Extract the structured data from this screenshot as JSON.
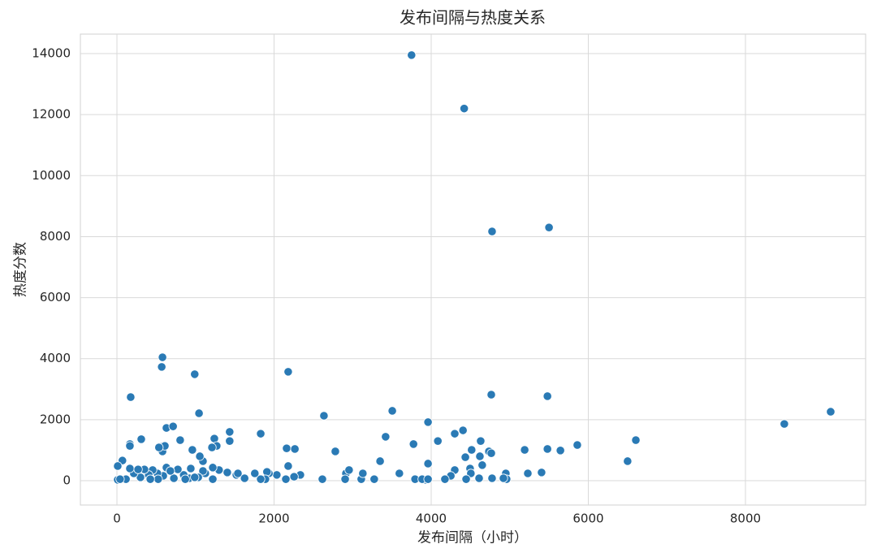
{
  "chart_data": {
    "type": "scatter",
    "title": "发布间隔与热度关系",
    "x_label": "发布间隔（小时）",
    "y_label": "热度分数",
    "color": "#2a7ab5",
    "grid": true,
    "xlim": [
      -465,
      9530
    ],
    "ylim": [
      -798,
      14639
    ],
    "xticks": [
      0,
      2000,
      4000,
      6000,
      8000
    ],
    "yticks": [
      0,
      2000,
      4000,
      6000,
      8000,
      10000,
      12000,
      14000
    ],
    "x": [
      3750,
      4420,
      4775,
      5500,
      580,
      570,
      990,
      2180,
      175,
      4765,
      5480,
      1045,
      2635,
      3505,
      9085,
      8495,
      3960,
      1830,
      1435,
      1435,
      310,
      630,
      715,
      805,
      1240,
      1270,
      1210,
      165,
      165,
      3420,
      3775,
      4085,
      4300,
      4405,
      4630,
      4735,
      4765,
      4515,
      4620,
      4650,
      4300,
      4250,
      4435,
      4495,
      4505,
      580,
      580,
      610,
      960,
      535,
      1095,
      1055,
      2160,
      2265,
      2180,
      2780,
      3350,
      3595,
      3960,
      5190,
      5480,
      5645,
      5860,
      6605,
      6500,
      5230,
      5405,
      4950,
      4960,
      4920,
      4775,
      4610,
      4445,
      4175,
      3930,
      3795,
      3885,
      3960,
      3275,
      3110,
      3130,
      2915,
      2955,
      2905,
      2615,
      2335,
      2255,
      2150,
      2035,
      1935,
      1910,
      1890,
      1830,
      1755,
      1625,
      1520,
      1405,
      1300,
      1220,
      1220,
      1125,
      1095,
      1035,
      940,
      920,
      850,
      775,
      725,
      630,
      590,
      515,
      455,
      405,
      350,
      300,
      215,
      165,
      115,
      70,
      10,
      10,
      40,
      270,
      680,
      870,
      990,
      525,
      425,
      1540
    ],
    "y": [
      13950,
      12200,
      8170,
      8300,
      4045,
      3730,
      3490,
      3570,
      2740,
      2820,
      2770,
      2210,
      2130,
      2290,
      2260,
      1860,
      1920,
      1540,
      1600,
      1300,
      1360,
      1730,
      1780,
      1330,
      1380,
      1140,
      1090,
      1200,
      1140,
      1440,
      1200,
      1300,
      1540,
      1650,
      1300,
      960,
      900,
      1010,
      800,
      510,
      350,
      160,
      770,
      400,
      240,
      1120,
      960,
      1140,
      1010,
      1090,
      640,
      800,
      1060,
      1040,
      480,
      960,
      640,
      240,
      560,
      1010,
      1040,
      990,
      1170,
      1330,
      640,
      240,
      270,
      240,
      50,
      80,
      80,
      80,
      50,
      50,
      30,
      50,
      50,
      50,
      50,
      50,
      240,
      240,
      350,
      50,
      50,
      190,
      130,
      50,
      190,
      240,
      290,
      50,
      50,
      240,
      80,
      190,
      270,
      350,
      430,
      50,
      240,
      320,
      110,
      400,
      80,
      190,
      370,
      80,
      430,
      160,
      240,
      350,
      190,
      370,
      110,
      240,
      400,
      50,
      660,
      480,
      30,
      50,
      370,
      320,
      50,
      110,
      50,
      50,
      240
    ]
  }
}
